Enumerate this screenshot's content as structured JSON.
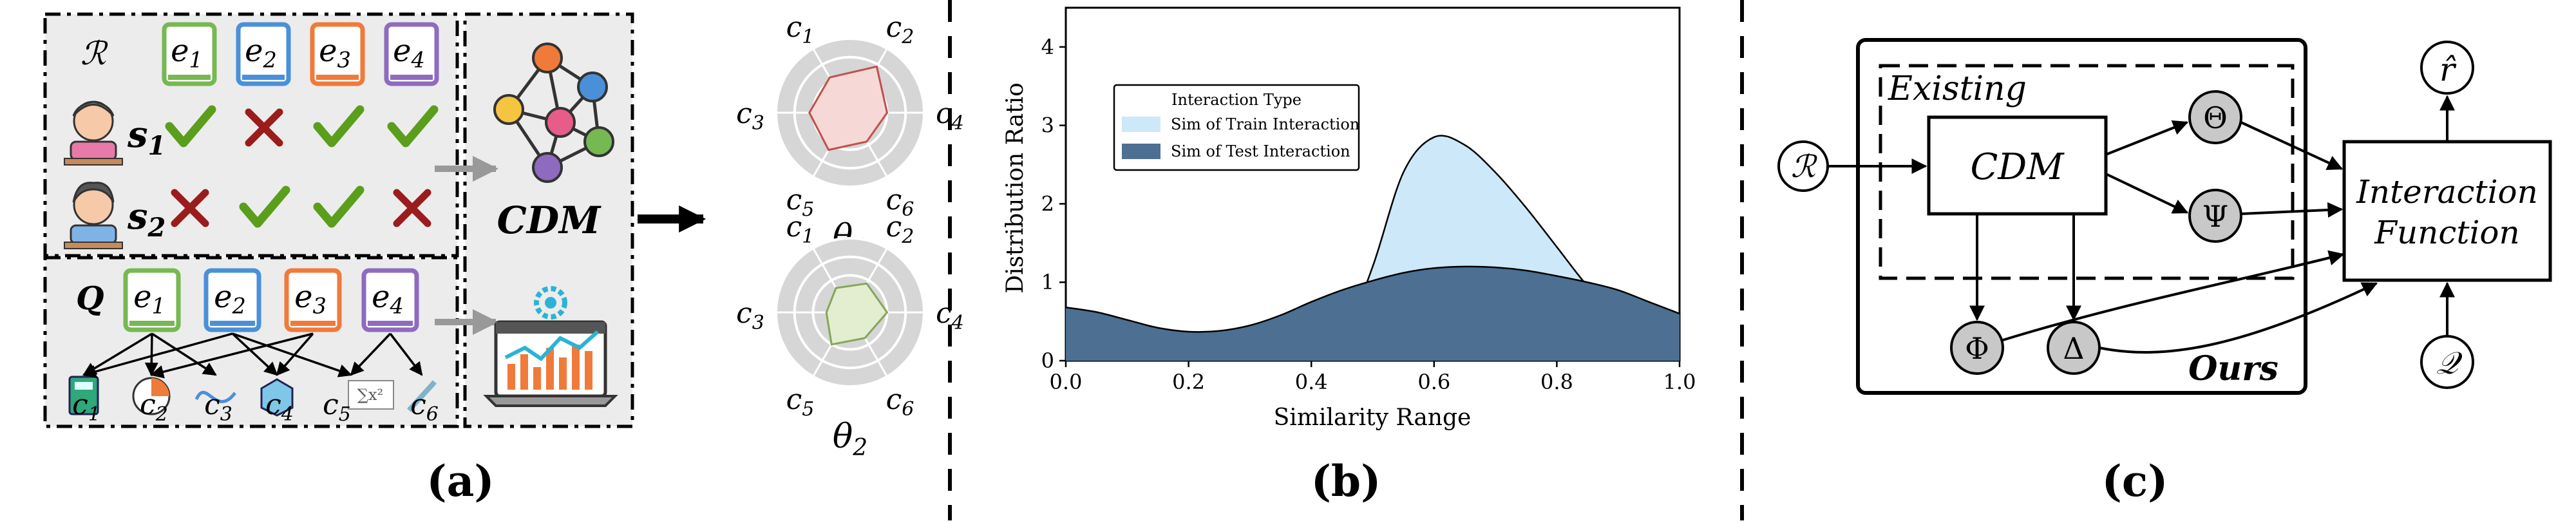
{
  "colors": {
    "green": "#76b852",
    "blue": "#4a90d9",
    "orange": "#f07a3a",
    "purple": "#8e6bbf",
    "check": "#5a9e1b",
    "cross": "#9b1c1c",
    "train_fill": "#cde8f8",
    "test_fill": "#4c6f92",
    "radar1_fill": "#f6d9d6",
    "radar1_stroke": "#c0504d",
    "radar2_fill": "#e3edd0",
    "radar2_stroke": "#86a55a"
  },
  "panel_a": {
    "caption": "(a)",
    "R_label": "ℛ",
    "Q_label": "Q",
    "exercises": [
      {
        "letter": "e",
        "sub": "1"
      },
      {
        "letter": "e",
        "sub": "2"
      },
      {
        "letter": "e",
        "sub": "3"
      },
      {
        "letter": "e",
        "sub": "4"
      }
    ],
    "students": [
      {
        "letter": "s",
        "sub": "1",
        "responses": [
          "check",
          "cross",
          "check",
          "check"
        ]
      },
      {
        "letter": "s",
        "sub": "2",
        "responses": [
          "cross",
          "check",
          "check",
          "cross"
        ]
      }
    ],
    "concepts": [
      {
        "letter": "c",
        "sub": "1",
        "icon": "calculator-icon"
      },
      {
        "letter": "c",
        "sub": "2",
        "icon": "pie-icon"
      },
      {
        "letter": "c",
        "sub": "3",
        "icon": "wave-icon"
      },
      {
        "letter": "c",
        "sub": "4",
        "icon": "cube-icon"
      },
      {
        "letter": "c",
        "sub": "5",
        "icon": "formula-icon"
      },
      {
        "letter": "c",
        "sub": "6",
        "icon": "ruler-icon"
      }
    ],
    "formula_text": "∑x²",
    "cdm_label": "CDM",
    "radars": [
      {
        "theta": "θ",
        "sub": "1",
        "values": [
          0.55,
          0.72,
          0.5,
          0.45,
          0.58,
          0.55
        ]
      },
      {
        "theta": "θ",
        "sub": "2",
        "values": [
          0.38,
          0.45,
          0.5,
          0.4,
          0.5,
          0.32
        ]
      }
    ],
    "radar_labels": [
      {
        "letter": "c",
        "sub": "1"
      },
      {
        "letter": "c",
        "sub": "2"
      },
      {
        "letter": "c",
        "sub": "4"
      },
      {
        "letter": "c",
        "sub": "6"
      },
      {
        "letter": "c",
        "sub": "5"
      },
      {
        "letter": "c",
        "sub": "3"
      }
    ]
  },
  "panel_b": {
    "caption": "(b)",
    "chart_data": {
      "type": "area",
      "xlabel": "Similarity Range",
      "ylabel": "Distribution Ratio",
      "xlim": [
        0.0,
        1.0
      ],
      "ylim": [
        0,
        4.5
      ],
      "x_ticks": [
        "0.0",
        "0.2",
        "0.4",
        "0.6",
        "0.8",
        "1.0"
      ],
      "y_ticks": [
        "0",
        "1",
        "2",
        "3",
        "4"
      ],
      "legend_title": "Interaction Type",
      "legend_position": "upper-left",
      "series": [
        {
          "name": "Sim of Train Interaction",
          "x": [
            0.4,
            0.45,
            0.5,
            0.55,
            0.6,
            0.65,
            0.7,
            0.75,
            0.8,
            0.85,
            0.9,
            0.95,
            1.0
          ],
          "y": [
            0.0,
            0.25,
            1.2,
            2.4,
            2.85,
            2.75,
            2.4,
            1.95,
            1.45,
            0.95,
            0.55,
            0.25,
            0.05
          ]
        },
        {
          "name": "Sim of Test Interaction",
          "x": [
            0.0,
            0.05,
            0.1,
            0.15,
            0.2,
            0.25,
            0.3,
            0.35,
            0.4,
            0.45,
            0.5,
            0.55,
            0.6,
            0.65,
            0.7,
            0.75,
            0.8,
            0.85,
            0.9,
            0.95,
            1.0
          ],
          "y": [
            0.68,
            0.62,
            0.52,
            0.42,
            0.37,
            0.38,
            0.45,
            0.58,
            0.75,
            0.9,
            1.02,
            1.12,
            1.18,
            1.2,
            1.19,
            1.15,
            1.08,
            1.0,
            0.9,
            0.75,
            0.6
          ]
        }
      ]
    }
  },
  "panel_c": {
    "caption": "(c)",
    "existing_label": "Existing",
    "ours_label": "Ours",
    "cdm_label": "CDM",
    "interaction_line1": "Interaction",
    "interaction_line2": "Function",
    "R_label": "ℛ",
    "Q_label": "𝒬",
    "rhat_label": "r̂",
    "theta_label": "Θ",
    "psi_label": "Ψ",
    "phi_label": "Φ",
    "delta_label": "Δ"
  }
}
